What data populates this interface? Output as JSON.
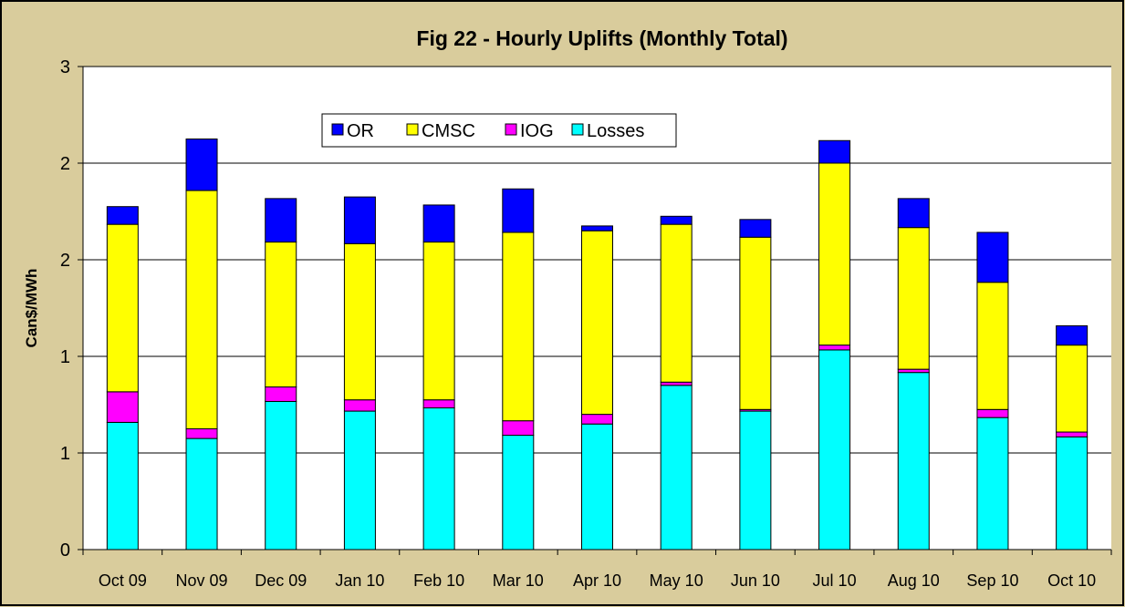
{
  "chart_data": {
    "type": "stacked_bar",
    "title": "Fig  22 - Hourly Uplifts (Monthly Total)",
    "y_label": "Can$/MWh",
    "categories": [
      "Oct 09",
      "Nov 09",
      "Dec 09",
      "Jan 10",
      "Feb 10",
      "Mar 10",
      "Apr 10",
      "May 10",
      "Jun 10",
      "Jul 10",
      "Aug 10",
      "Sep 10",
      "Oct 10"
    ],
    "series": [
      {
        "name": "OR",
        "color": "#0000ff",
        "values": [
          0.11,
          0.32,
          0.27,
          0.29,
          0.23,
          0.27,
          0.03,
          0.05,
          0.11,
          0.14,
          0.18,
          0.31,
          0.12
        ]
      },
      {
        "name": "CMSC",
        "color": "#ffff00",
        "values": [
          1.04,
          1.48,
          0.9,
          0.97,
          0.98,
          1.17,
          1.14,
          0.98,
          1.07,
          1.13,
          0.88,
          0.79,
          0.54
        ]
      },
      {
        "name": "IOG",
        "color": "#ff00ff",
        "values": [
          0.19,
          0.06,
          0.09,
          0.07,
          0.05,
          0.09,
          0.06,
          0.02,
          0.01,
          0.03,
          0.02,
          0.05,
          0.03
        ]
      },
      {
        "name": "Losses",
        "color": "#00ffff",
        "values": [
          0.79,
          0.69,
          0.92,
          0.86,
          0.88,
          0.71,
          0.78,
          1.02,
          0.86,
          1.24,
          1.1,
          0.82,
          0.7
        ]
      }
    ],
    "ylim": [
      0,
      3
    ],
    "yticks": [
      0,
      {
        "value": 0.6,
        "label": "1"
      },
      {
        "value": 1.2,
        "label": "1"
      },
      {
        "value": 1.8,
        "label": "2"
      },
      {
        "value": 2.4,
        "label": "2"
      },
      3
    ],
    "grid": true
  }
}
